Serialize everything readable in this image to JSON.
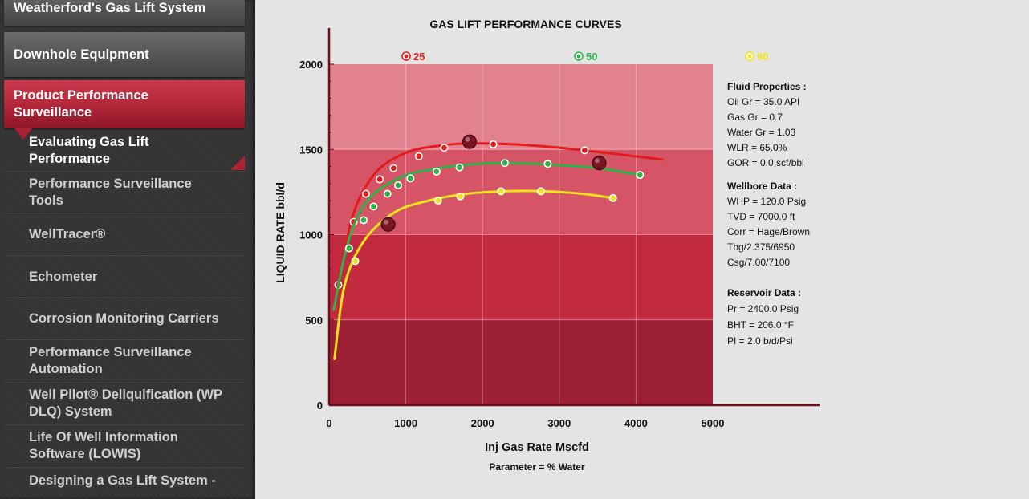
{
  "sidebar": {
    "items": [
      {
        "label": "Weatherford's Gas Lift System",
        "style": "gray"
      },
      {
        "label": "Downhole Equipment",
        "style": "gray"
      },
      {
        "label": "Product Performance Surveillance",
        "style": "red"
      }
    ],
    "subitems": [
      {
        "label": "Evaluating Gas Lift Performance",
        "active": true
      },
      {
        "label": "Performance Surveillance Tools",
        "active": false
      },
      {
        "label": "WellTracer®",
        "active": false
      },
      {
        "label": "Echometer",
        "active": false
      },
      {
        "label": "Corrosion Monitoring Carriers",
        "active": false
      },
      {
        "label": "Performance Surveillance Automation",
        "active": false
      },
      {
        "label": "Well Pilot® Deliquification (WP DLQ) System",
        "active": false
      },
      {
        "label": "Life Of Well Information Software (LOWIS)",
        "active": false
      },
      {
        "label": "Designing a Gas Lift System -",
        "active": false
      }
    ]
  },
  "chart_data": {
    "type": "line",
    "title": "GAS LIFT PERFORMANCE CURVES",
    "xlabel": "Inj Gas Rate Mscfd",
    "ylabel": "LIQUID RATE bbl/d",
    "parameter_label": "Parameter = % Water",
    "xlim": [
      0,
      5000
    ],
    "ylim": [
      0,
      2000
    ],
    "x_ticks": [
      "0",
      "1000",
      "2000",
      "3000",
      "4000",
      "5000"
    ],
    "y_ticks": [
      "0",
      "500",
      "1000",
      "1500",
      "2000"
    ],
    "bands": [
      {
        "from": 0,
        "to": 500,
        "color": "#9c1f34"
      },
      {
        "from": 500,
        "to": 1000,
        "color": "#c22a40"
      },
      {
        "from": 1000,
        "to": 1500,
        "color": "#d55466"
      },
      {
        "from": 1500,
        "to": 2000,
        "color": "#e3828f"
      }
    ],
    "series": [
      {
        "name": "25",
        "color": "#e31b1b",
        "x": [
          120,
          300,
          600,
          1000,
          1400,
          1800,
          2400,
          3000,
          3600,
          4350
        ],
        "y": [
          650,
          1100,
          1360,
          1480,
          1520,
          1535,
          1530,
          1510,
          1480,
          1440
        ],
        "markers_x": [
          120,
          320,
          480,
          660,
          840,
          1170,
          1500,
          2140,
          3330
        ],
        "markers_y": [
          705,
          1075,
          1240,
          1325,
          1390,
          1460,
          1510,
          1530,
          1495
        ]
      },
      {
        "name": "50",
        "color": "#2db34a",
        "x": [
          60,
          250,
          500,
          900,
          1300,
          1800,
          2300,
          2900,
          3500,
          4050
        ],
        "y": [
          560,
          960,
          1200,
          1330,
          1380,
          1410,
          1420,
          1410,
          1390,
          1350
        ],
        "markers_x": [
          260,
          450,
          580,
          760,
          900,
          1060,
          1400,
          1700,
          2290,
          2850,
          4050
        ],
        "markers_y": [
          920,
          1085,
          1165,
          1240,
          1290,
          1330,
          1370,
          1395,
          1420,
          1415,
          1350
        ],
        "highlight_x": [
          770,
          1830,
          3520
        ],
        "highlight_y": [
          1060,
          1545,
          1420
        ]
      },
      {
        "name": "90",
        "color": "#f2e41a",
        "x": [
          70,
          200,
          450,
          850,
          1300,
          1800,
          2300,
          2800,
          3300,
          3700
        ],
        "y": [
          270,
          700,
          960,
          1130,
          1200,
          1240,
          1255,
          1255,
          1240,
          1215
        ],
        "markers_x": [
          340,
          1420,
          1710,
          2240,
          2760,
          3700
        ],
        "markers_y": [
          845,
          1200,
          1225,
          1255,
          1255,
          1215
        ]
      }
    ]
  },
  "properties": {
    "fluid_heading": "Fluid Properties :",
    "fluid": [
      "Oil Gr = 35.0 API",
      "Gas Gr = 0.7",
      "Water Gr = 1.03",
      "WLR = 65.0%",
      "GOR = 0.0  scf/bbl"
    ],
    "wellbore_heading": "Wellbore Data :",
    "wellbore": [
      "WHP = 120.0 Psig",
      "TVD = 7000.0 ft",
      "Corr = Hage/Brown",
      "Tbg/2.375/6950",
      "Csg/7.00/7100"
    ],
    "reservoir_heading": "Reservoir Data :",
    "reservoir": [
      "Pr = 2400.0 Psig",
      "BHT = 206.0 °F",
      "PI = 2.0 b/d/Psi"
    ]
  }
}
